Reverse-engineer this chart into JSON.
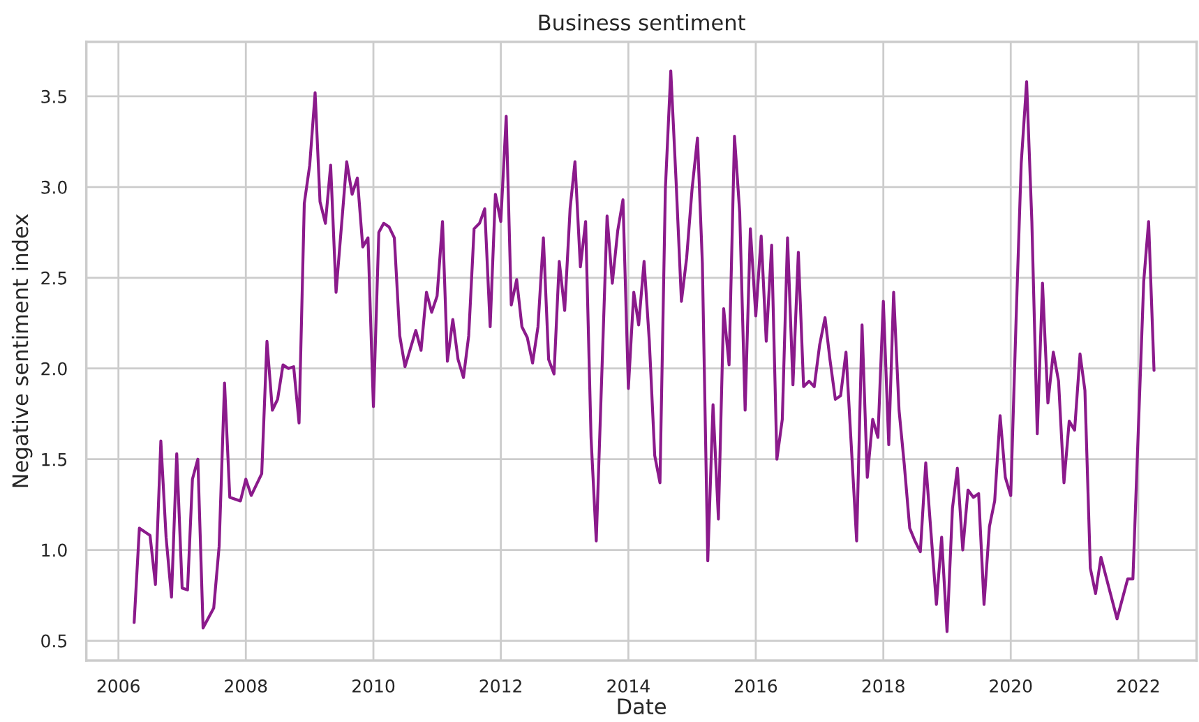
{
  "chart_data": {
    "type": "line",
    "title": "Business sentiment",
    "xlabel": "Date",
    "ylabel": "Negative sentiment index",
    "x": [
      "2006-04",
      "2006-05",
      "2006-07",
      "2006-08",
      "2006-09",
      "2006-10",
      "2006-11",
      "2006-12",
      "2007-01",
      "2007-02",
      "2007-03",
      "2007-04",
      "2007-05",
      "2007-07",
      "2007-08",
      "2007-09",
      "2007-10",
      "2007-12",
      "2008-01",
      "2008-02",
      "2008-04",
      "2008-05",
      "2008-06",
      "2008-07",
      "2008-08",
      "2008-09",
      "2008-10",
      "2008-11",
      "2008-12",
      "2009-01",
      "2009-02",
      "2009-03",
      "2009-04",
      "2009-05",
      "2009-06",
      "2009-08",
      "2009-09",
      "2009-10",
      "2009-11",
      "2009-12",
      "2010-01",
      "2010-02",
      "2010-03",
      "2010-04",
      "2010-05",
      "2010-06",
      "2010-07",
      "2010-09",
      "2010-10",
      "2010-11",
      "2010-12",
      "2011-01",
      "2011-02",
      "2011-03",
      "2011-04",
      "2011-05",
      "2011-06",
      "2011-07",
      "2011-08",
      "2011-09",
      "2011-10",
      "2011-11",
      "2011-12",
      "2012-01",
      "2012-02",
      "2012-03",
      "2012-04",
      "2012-05",
      "2012-06",
      "2012-07",
      "2012-08",
      "2012-09",
      "2012-10",
      "2012-11",
      "2012-12",
      "2013-01",
      "2013-02",
      "2013-03",
      "2013-04",
      "2013-05",
      "2013-06",
      "2013-07",
      "2013-09",
      "2013-10",
      "2013-11",
      "2013-12",
      "2014-01",
      "2014-02",
      "2014-03",
      "2014-04",
      "2014-05",
      "2014-06",
      "2014-07",
      "2014-08",
      "2014-09",
      "2014-10",
      "2014-11",
      "2014-12",
      "2015-01",
      "2015-02",
      "2015-03",
      "2015-04",
      "2015-05",
      "2015-06",
      "2015-07",
      "2015-08",
      "2015-09",
      "2015-10",
      "2015-11",
      "2015-12",
      "2016-01",
      "2016-02",
      "2016-03",
      "2016-04",
      "2016-05",
      "2016-06",
      "2016-07",
      "2016-08",
      "2016-09",
      "2016-10",
      "2016-11",
      "2016-12",
      "2017-01",
      "2017-02",
      "2017-03",
      "2017-04",
      "2017-05",
      "2017-06",
      "2017-07",
      "2017-08",
      "2017-09",
      "2017-10",
      "2017-11",
      "2017-12",
      "2018-01",
      "2018-02",
      "2018-03",
      "2018-04",
      "2018-05",
      "2018-06",
      "2018-07",
      "2018-08",
      "2018-09",
      "2018-11",
      "2018-12",
      "2019-01",
      "2019-02",
      "2019-03",
      "2019-04",
      "2019-05",
      "2019-06",
      "2019-07",
      "2019-08",
      "2019-09",
      "2019-10",
      "2019-11",
      "2019-12",
      "2020-01",
      "2020-02",
      "2020-03",
      "2020-04",
      "2020-05",
      "2020-06",
      "2020-07",
      "2020-08",
      "2020-09",
      "2020-10",
      "2020-11",
      "2020-12",
      "2021-01",
      "2021-02",
      "2021-03",
      "2021-04",
      "2021-05",
      "2021-06",
      "2021-09",
      "2021-11",
      "2021-12",
      "2022-02",
      "2022-03",
      "2022-04"
    ],
    "series": [
      {
        "color": "#8b1a8b",
        "values": [
          0.6,
          1.12,
          1.08,
          0.81,
          1.6,
          1.07,
          0.74,
          1.53,
          0.79,
          0.78,
          1.39,
          1.5,
          0.57,
          0.68,
          1.02,
          1.92,
          1.29,
          1.27,
          1.39,
          1.3,
          1.42,
          2.15,
          1.77,
          1.83,
          2.02,
          2.0,
          2.01,
          1.7,
          2.91,
          3.12,
          3.52,
          2.92,
          2.8,
          3.12,
          2.42,
          3.14,
          2.96,
          3.05,
          2.67,
          2.72,
          1.79,
          2.75,
          2.8,
          2.78,
          2.72,
          2.18,
          2.01,
          2.21,
          2.1,
          2.42,
          2.31,
          2.4,
          2.81,
          2.04,
          2.27,
          2.05,
          1.95,
          2.18,
          2.77,
          2.8,
          2.88,
          2.23,
          2.96,
          2.81,
          3.39,
          2.35,
          2.49,
          2.23,
          2.17,
          2.03,
          2.23,
          2.72,
          2.05,
          1.97,
          2.59,
          2.32,
          2.88,
          3.14,
          2.56,
          2.81,
          1.62,
          1.05,
          2.84,
          2.47,
          2.76,
          2.93,
          1.89,
          2.42,
          2.24,
          2.59,
          2.15,
          1.52,
          1.37,
          2.99,
          3.64,
          3.04,
          2.37,
          2.61,
          2.99,
          3.27,
          2.58,
          0.94,
          1.8,
          1.17,
          2.33,
          2.02,
          3.28,
          2.86,
          1.77,
          2.77,
          2.29,
          2.73,
          2.15,
          2.68,
          1.5,
          1.72,
          2.72,
          1.91,
          2.64,
          1.9,
          1.93,
          1.9,
          2.13,
          2.28,
          2.05,
          1.83,
          1.85,
          2.09,
          1.58,
          1.05,
          2.24,
          1.4,
          1.72,
          1.62,
          2.37,
          1.58,
          2.42,
          1.77,
          1.47,
          1.12,
          1.05,
          0.99,
          1.48,
          0.7,
          1.07,
          0.55,
          1.23,
          1.45,
          1.0,
          1.33,
          1.29,
          1.31,
          0.7,
          1.13,
          1.27,
          1.74,
          1.4,
          1.3,
          2.28,
          3.13,
          3.58,
          2.81,
          1.64,
          2.47,
          1.81,
          2.09,
          1.93,
          1.37,
          1.71,
          1.66,
          2.08,
          1.88,
          0.9,
          0.76,
          0.96,
          0.62,
          0.84,
          0.84,
          2.48,
          2.81,
          1.99
        ]
      }
    ],
    "xlim": [
      "2005-07",
      "2022-12"
    ],
    "xticks": [
      "2006",
      "2008",
      "2010",
      "2012",
      "2014",
      "2016",
      "2018",
      "2020",
      "2022"
    ],
    "ylim": [
      0.39,
      3.8
    ],
    "yticks": [
      {
        "value": 0.5,
        "label": "0.5"
      },
      {
        "value": 1.0,
        "label": "1.0"
      },
      {
        "value": 1.5,
        "label": "1.5"
      },
      {
        "value": 2.0,
        "label": "2.0"
      },
      {
        "value": 2.5,
        "label": "2.5"
      },
      {
        "value": 3.0,
        "label": "3.0"
      },
      {
        "value": 3.5,
        "label": "3.5"
      }
    ],
    "grid": true
  }
}
